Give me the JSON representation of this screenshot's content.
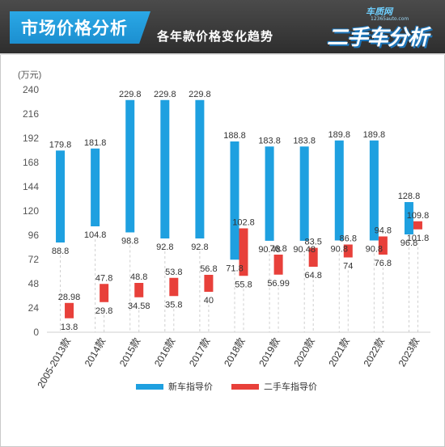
{
  "header": {
    "title": "市场价格分析",
    "subtitle": "各年款价格变化趋势"
  },
  "logo": {
    "site": "车质网",
    "domain": "12365auto.com",
    "text": "二手车分析"
  },
  "colors": {
    "new_car": "#1ea0e0",
    "used_car": "#e8403a"
  },
  "chart_data": {
    "type": "bar",
    "subtype": "floating-range",
    "unit_label": "(万元)",
    "ylim": [
      0,
      240
    ],
    "yticks": [
      0,
      24,
      48,
      72,
      96,
      120,
      144,
      168,
      192,
      216,
      240
    ],
    "grid": false,
    "legend_position": "bottom",
    "categories": [
      "2005-2013款",
      "2014款",
      "2015款",
      "2016款",
      "2017款",
      "2018款",
      "2019款",
      "2020款",
      "2021款",
      "2022款",
      "2023款"
    ],
    "series": [
      {
        "name": "新车指导价",
        "low_labels": [
          "88.8",
          "104.8",
          "98.8",
          "92.8",
          "92.8",
          "71.8",
          "90.48",
          "90.48",
          "90.8",
          "90.8",
          "96.8"
        ],
        "high_labels": [
          "179.8",
          "181.8",
          "229.8",
          "229.8",
          "229.8",
          "188.8",
          "183.8",
          "183.8",
          "189.8",
          "189.8",
          "128.8"
        ],
        "low": [
          88.8,
          104.8,
          98.8,
          92.8,
          92.8,
          71.8,
          90.48,
          90.48,
          90.8,
          90.8,
          96.8
        ],
        "high": [
          179.8,
          181.8,
          229.8,
          229.8,
          229.8,
          188.8,
          183.8,
          183.8,
          189.8,
          189.8,
          128.8
        ]
      },
      {
        "name": "二手车指导价",
        "low_labels": [
          "13.8",
          "29.8",
          "34.58",
          "35.8",
          "40",
          "55.8",
          "56.99",
          "64.8",
          "74",
          "76.8",
          "101.8"
        ],
        "high_labels": [
          "28.98",
          "47.8",
          "48.8",
          "53.8",
          "56.8",
          "102.8",
          "76.8",
          "83.5",
          "86.8",
          "94.8",
          "109.8"
        ],
        "low": [
          13.8,
          29.8,
          34.58,
          35.8,
          40,
          55.8,
          56.99,
          64.8,
          74,
          76.8,
          101.8
        ],
        "high": [
          28.98,
          47.8,
          48.8,
          53.8,
          56.8,
          102.8,
          76.8,
          83.5,
          86.8,
          94.8,
          109.8
        ]
      }
    ]
  }
}
